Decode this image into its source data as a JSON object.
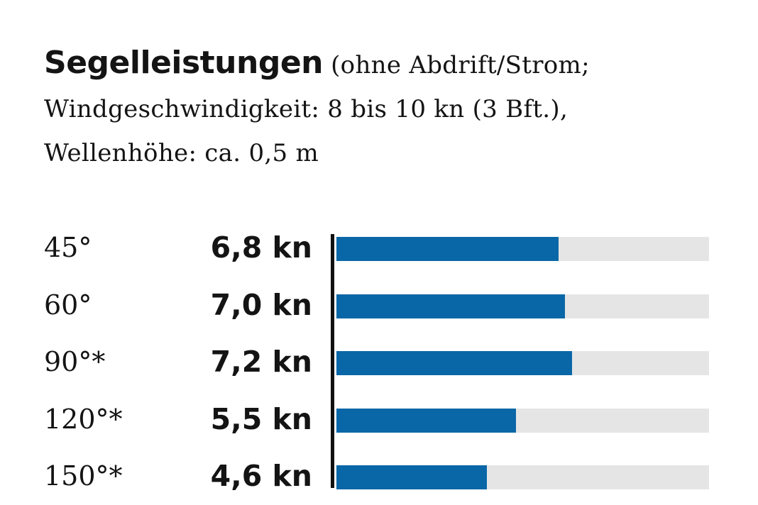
{
  "title": {
    "bold": "Segelleistungen",
    "line1_rest": "(ohne Abdrift/Strom;",
    "line2": "Windgeschwindigkeit: 8 bis 10 kn (3 Bft.),",
    "line3": "Wellenhöhe: ca. 0,5 m"
  },
  "colors": {
    "bar": "#0a67a7",
    "track": "#e5e5e5",
    "axis": "#111111"
  },
  "chart_data": {
    "type": "bar",
    "orientation": "horizontal",
    "title": "Segelleistungen (ohne Abdrift/Strom; Windgeschwindigkeit: 8 bis 10 kn (3 Bft.), Wellenhöhe: ca. 0,5 m",
    "categories": [
      "45°",
      "60°",
      "90°*",
      "120°*",
      "150°*"
    ],
    "values": [
      6.8,
      7.0,
      7.2,
      5.5,
      4.6
    ],
    "value_labels": [
      "6,8 kn",
      "7,0 kn",
      "7,2 kn",
      "5,5 kn",
      "4,6 kn"
    ],
    "unit": "kn",
    "xlim": [
      0,
      11.4
    ],
    "grid": false,
    "legend": "none"
  }
}
